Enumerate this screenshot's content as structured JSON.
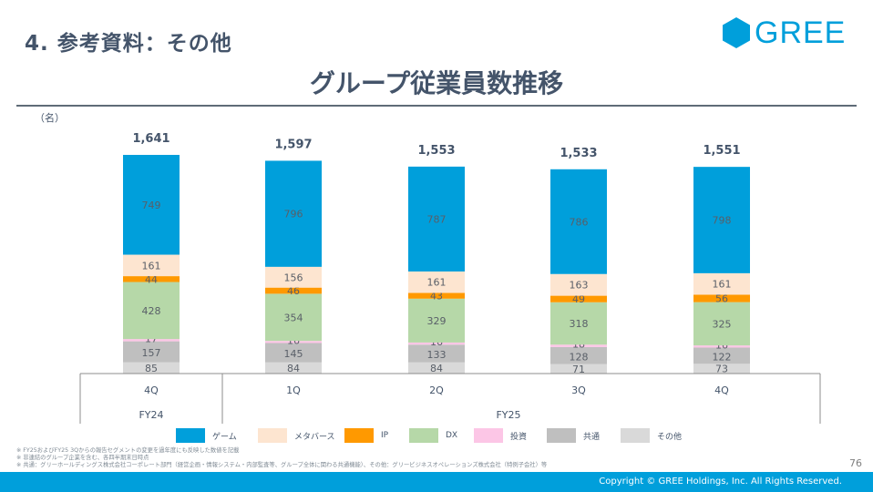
{
  "header": {
    "section_title": "4. 参考資料：その他",
    "logo_text": "GREE",
    "brand_color": "#009fdb"
  },
  "chart_data": {
    "type": "bar",
    "stacked": true,
    "title": "グループ従業員数推移",
    "unit_label": "（名）",
    "categories": [
      "4Q",
      "1Q",
      "2Q",
      "3Q",
      "4Q"
    ],
    "fiscal_years": [
      {
        "label": "FY24",
        "quarters": 1
      },
      {
        "label": "FY25",
        "quarters": 4
      }
    ],
    "totals": [
      "1,641",
      "1,597",
      "1,553",
      "1,533",
      "1,551"
    ],
    "series": [
      {
        "name": "その他",
        "color": "#d9d9d9",
        "values": [
          85,
          84,
          84,
          71,
          73
        ]
      },
      {
        "name": "共通",
        "color": "#bfbfbf",
        "values": [
          157,
          145,
          133,
          128,
          122
        ]
      },
      {
        "name": "投資",
        "color": "#fcc6e6",
        "values": [
          17,
          16,
          16,
          18,
          16
        ]
      },
      {
        "name": "DX",
        "color": "#b6d8a8",
        "values": [
          428,
          354,
          329,
          318,
          325
        ]
      },
      {
        "name": "IP",
        "color": "#ff9900",
        "values": [
          44,
          46,
          43,
          49,
          56
        ]
      },
      {
        "name": "メタバース",
        "color": "#fde5d0",
        "values": [
          161,
          156,
          161,
          163,
          161
        ]
      },
      {
        "name": "ゲーム",
        "color": "#009fdb",
        "values": [
          749,
          796,
          787,
          786,
          798
        ]
      }
    ],
    "legend_order": [
      "ゲーム",
      "メタバース",
      "IP",
      "DX",
      "投資",
      "共通",
      "その他"
    ],
    "legend_position": "bottom",
    "grid": false,
    "ylim": [
      0,
      1800
    ]
  },
  "notes": [
    "※ FY25およびFY25 3Qからの報告セグメントの変更を過年度にも反映した数値を記載",
    "※ 非連結のグループ企業を含む、各四半期末日時点",
    "※ 共通：グリーホールディングス株式会社コーポレート部門（経営企画・情報システム・内部監査等、グループ全体に関わる共通機能）、その他：グリービジネスオペレーションズ株式会社（特例子会社）等"
  ],
  "footer": {
    "page_number": "76",
    "copyright": "Copyright © GREE Holdings, Inc. All Rights Reserved."
  }
}
